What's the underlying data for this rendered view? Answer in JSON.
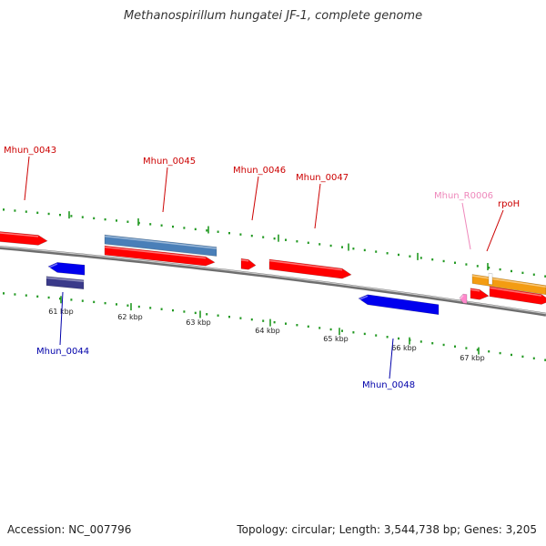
{
  "title": "Methanospirillum hungatei JF-1, complete genome",
  "accession_text": "Accession: NC_007796",
  "summary_text": "Topology: circular; Length: 3,544,738 bp; Genes: 3,205",
  "colors": {
    "cds": "#ff0000",
    "cds_blue": "#0000ee",
    "steel": "#4a7fb8",
    "purple": "#3a3a8a",
    "orange": "#f39c12",
    "rna": "#ff88cc",
    "label_red": "#cc0000",
    "label_blue": "#0000aa",
    "label_pink": "#ee88bb",
    "grid": "#229922",
    "backbone": "#888888"
  },
  "ticks": [
    {
      "label": "61 kbp"
    },
    {
      "label": "62 kbp"
    },
    {
      "label": "63 kbp"
    },
    {
      "label": "64 kbp"
    },
    {
      "label": "65 kbp"
    },
    {
      "label": "66 kbp"
    },
    {
      "label": "67 kbp"
    }
  ],
  "genes": [
    {
      "name": "Mhun_0043",
      "strand": "+",
      "color_key": "cds",
      "label_color_key": "label_red"
    },
    {
      "name": "Mhun_0044",
      "strand": "-",
      "color_key": "cds_blue",
      "label_color_key": "label_blue"
    },
    {
      "name": "Mhun_0045",
      "strand": "+",
      "color_key": "cds",
      "label_color_key": "label_red"
    },
    {
      "name": "Mhun_0046",
      "strand": "+",
      "color_key": "cds",
      "label_color_key": "label_red"
    },
    {
      "name": "Mhun_0047",
      "strand": "+",
      "color_key": "cds",
      "label_color_key": "label_red"
    },
    {
      "name": "Mhun_0048",
      "strand": "-",
      "color_key": "cds_blue",
      "label_color_key": "label_blue"
    },
    {
      "name": "Mhun_R0006",
      "strand": "-",
      "color_key": "rna",
      "label_color_key": "label_pink"
    },
    {
      "name": "rpoH",
      "strand": "+",
      "color_key": "cds",
      "label_color_key": "label_red"
    }
  ]
}
